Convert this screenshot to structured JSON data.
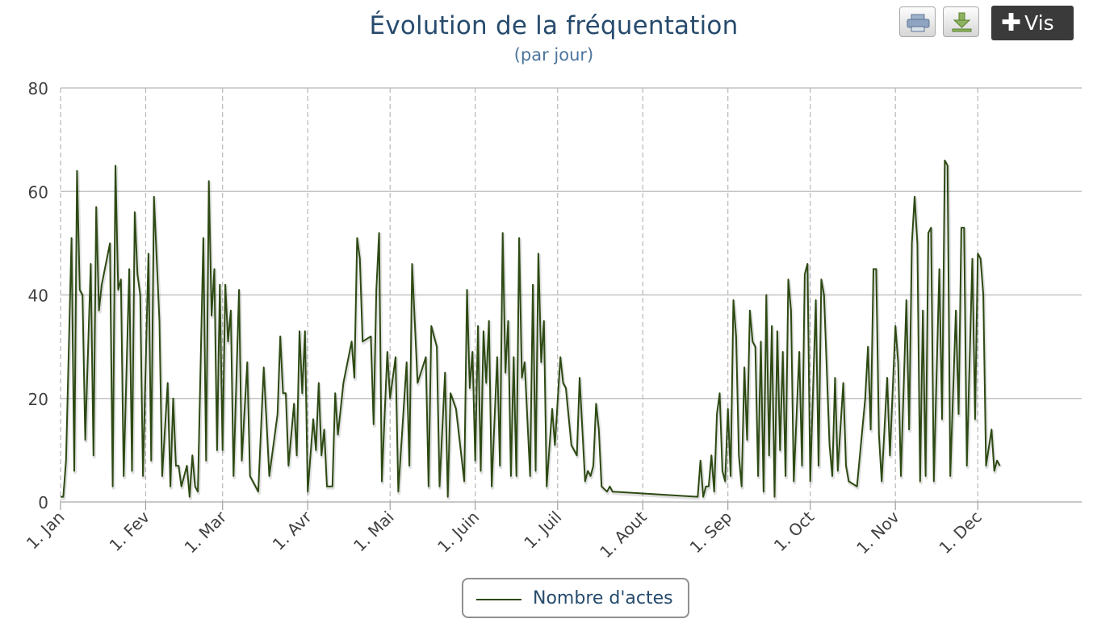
{
  "chart_data": {
    "type": "line",
    "title": "Évolution de la fréquentation",
    "subtitle": "(par jour)",
    "xlabel": "",
    "ylabel": "",
    "ylim": [
      0,
      80
    ],
    "y_ticks": [
      "0",
      "20",
      "40",
      "60",
      "80"
    ],
    "x_tick_labels": [
      "1. Jan",
      "1. Fev",
      "1. Mar",
      "1. Avr",
      "1. Mai",
      "1. Juin",
      "1. Juil",
      "1. Aout",
      "1. Sep",
      "1. Oct",
      "1. Nov",
      "1. Dec"
    ],
    "grid": {
      "y": true,
      "x": "dashed"
    },
    "legend": "bottom-center",
    "series": [
      {
        "name": "Nombre d'actes",
        "color": "#2d4a13",
        "points": [
          [
            1,
            1
          ],
          [
            2,
            1
          ],
          [
            3,
            8
          ],
          [
            5,
            51
          ],
          [
            6,
            6
          ],
          [
            7,
            64
          ],
          [
            8,
            41
          ],
          [
            9,
            40
          ],
          [
            10,
            12
          ],
          [
            12,
            46
          ],
          [
            13,
            9
          ],
          [
            14,
            57
          ],
          [
            15,
            37
          ],
          [
            16,
            42
          ],
          [
            19,
            50
          ],
          [
            20,
            3
          ],
          [
            21,
            65
          ],
          [
            22,
            41
          ],
          [
            23,
            43
          ],
          [
            24,
            5
          ],
          [
            26,
            45
          ],
          [
            27,
            6
          ],
          [
            28,
            56
          ],
          [
            29,
            44
          ],
          [
            30,
            40
          ],
          [
            31,
            5
          ],
          [
            33,
            48
          ],
          [
            34,
            8
          ],
          [
            35,
            59
          ],
          [
            37,
            35
          ],
          [
            38,
            5
          ],
          [
            40,
            23
          ],
          [
            41,
            3
          ],
          [
            42,
            20
          ],
          [
            43,
            7
          ],
          [
            44,
            7
          ],
          [
            45,
            3
          ],
          [
            47,
            7
          ],
          [
            48,
            1
          ],
          [
            49,
            9
          ],
          [
            50,
            3
          ],
          [
            51,
            2
          ],
          [
            53,
            51
          ],
          [
            54,
            8
          ],
          [
            55,
            62
          ],
          [
            56,
            36
          ],
          [
            57,
            45
          ],
          [
            58,
            10
          ],
          [
            59,
            42
          ],
          [
            60,
            10
          ],
          [
            61,
            42
          ],
          [
            62,
            31
          ],
          [
            63,
            37
          ],
          [
            64,
            5
          ],
          [
            66,
            41
          ],
          [
            67,
            8
          ],
          [
            69,
            27
          ],
          [
            70,
            5
          ],
          [
            73,
            2
          ],
          [
            75,
            26
          ],
          [
            77,
            5
          ],
          [
            80,
            17
          ],
          [
            81,
            32
          ],
          [
            82,
            21
          ],
          [
            83,
            21
          ],
          [
            84,
            7
          ],
          [
            86,
            19
          ],
          [
            87,
            9
          ],
          [
            88,
            33
          ],
          [
            89,
            21
          ],
          [
            90,
            33
          ],
          [
            91,
            2
          ],
          [
            93,
            16
          ],
          [
            94,
            10
          ],
          [
            95,
            23
          ],
          [
            96,
            9
          ],
          [
            97,
            14
          ],
          [
            98,
            3
          ],
          [
            100,
            3
          ],
          [
            101,
            21
          ],
          [
            102,
            13
          ],
          [
            104,
            23
          ],
          [
            107,
            31
          ],
          [
            108,
            24
          ],
          [
            109,
            51
          ],
          [
            110,
            47
          ],
          [
            111,
            31
          ],
          [
            114,
            32
          ],
          [
            115,
            15
          ],
          [
            116,
            41
          ],
          [
            117,
            52
          ],
          [
            118,
            4
          ],
          [
            120,
            29
          ],
          [
            121,
            20
          ],
          [
            123,
            28
          ],
          [
            124,
            2
          ],
          [
            127,
            27
          ],
          [
            128,
            7
          ],
          [
            129,
            46
          ],
          [
            131,
            23
          ],
          [
            134,
            28
          ],
          [
            135,
            3
          ],
          [
            136,
            34
          ],
          [
            138,
            30
          ],
          [
            139,
            3
          ],
          [
            141,
            25
          ],
          [
            142,
            1
          ],
          [
            143,
            21
          ],
          [
            145,
            18
          ],
          [
            148,
            4
          ],
          [
            149,
            41
          ],
          [
            150,
            22
          ],
          [
            151,
            29
          ],
          [
            152,
            8
          ],
          [
            153,
            34
          ],
          [
            154,
            6
          ],
          [
            155,
            33
          ],
          [
            156,
            23
          ],
          [
            157,
            35
          ],
          [
            158,
            3
          ],
          [
            160,
            28
          ],
          [
            161,
            7
          ],
          [
            162,
            52
          ],
          [
            163,
            25
          ],
          [
            164,
            35
          ],
          [
            165,
            5
          ],
          [
            166,
            28
          ],
          [
            167,
            5
          ],
          [
            168,
            51
          ],
          [
            169,
            24
          ],
          [
            170,
            27
          ],
          [
            172,
            5
          ],
          [
            173,
            42
          ],
          [
            174,
            6
          ],
          [
            175,
            48
          ],
          [
            176,
            27
          ],
          [
            177,
            35
          ],
          [
            178,
            3
          ],
          [
            180,
            18
          ],
          [
            181,
            11
          ],
          [
            183,
            28
          ],
          [
            184,
            23
          ],
          [
            185,
            22
          ],
          [
            187,
            11
          ],
          [
            189,
            9
          ],
          [
            190,
            24
          ],
          [
            192,
            4
          ],
          [
            193,
            6
          ],
          [
            194,
            5
          ],
          [
            195,
            7
          ],
          [
            196,
            19
          ],
          [
            197,
            14
          ],
          [
            198,
            3
          ],
          [
            200,
            2
          ],
          [
            201,
            3
          ],
          [
            202,
            2
          ],
          [
            233,
            1
          ],
          [
            234,
            8
          ],
          [
            235,
            1
          ],
          [
            236,
            3
          ],
          [
            237,
            3
          ],
          [
            238,
            9
          ],
          [
            239,
            2
          ],
          [
            240,
            17
          ],
          [
            241,
            21
          ],
          [
            242,
            6
          ],
          [
            243,
            4
          ],
          [
            244,
            18
          ],
          [
            245,
            5
          ],
          [
            246,
            39
          ],
          [
            247,
            32
          ],
          [
            248,
            9
          ],
          [
            249,
            3
          ],
          [
            250,
            26
          ],
          [
            251,
            12
          ],
          [
            252,
            37
          ],
          [
            253,
            31
          ],
          [
            254,
            30
          ],
          [
            255,
            5
          ],
          [
            256,
            31
          ],
          [
            257,
            2
          ],
          [
            258,
            40
          ],
          [
            259,
            9
          ],
          [
            260,
            34
          ],
          [
            261,
            1
          ],
          [
            262,
            33
          ],
          [
            263,
            10
          ],
          [
            264,
            29
          ],
          [
            265,
            5
          ],
          [
            266,
            43
          ],
          [
            267,
            37
          ],
          [
            268,
            4
          ],
          [
            270,
            29
          ],
          [
            271,
            7
          ],
          [
            272,
            44
          ],
          [
            273,
            46
          ],
          [
            274,
            4
          ],
          [
            276,
            39
          ],
          [
            277,
            7
          ],
          [
            278,
            43
          ],
          [
            279,
            40
          ],
          [
            281,
            11
          ],
          [
            282,
            5
          ],
          [
            283,
            24
          ],
          [
            284,
            6
          ],
          [
            286,
            23
          ],
          [
            287,
            7
          ],
          [
            288,
            4
          ],
          [
            291,
            3
          ],
          [
            294,
            20
          ],
          [
            295,
            30
          ],
          [
            296,
            14
          ],
          [
            297,
            45
          ],
          [
            298,
            45
          ],
          [
            299,
            13
          ],
          [
            300,
            4
          ],
          [
            302,
            24
          ],
          [
            303,
            9
          ],
          [
            305,
            34
          ],
          [
            306,
            27
          ],
          [
            307,
            5
          ],
          [
            309,
            39
          ],
          [
            310,
            14
          ],
          [
            311,
            50
          ],
          [
            312,
            59
          ],
          [
            313,
            50
          ],
          [
            314,
            4
          ],
          [
            315,
            37
          ],
          [
            316,
            5
          ],
          [
            317,
            52
          ],
          [
            318,
            53
          ],
          [
            319,
            4
          ],
          [
            321,
            45
          ],
          [
            322,
            16
          ],
          [
            323,
            66
          ],
          [
            324,
            65
          ],
          [
            325,
            5
          ],
          [
            327,
            37
          ],
          [
            328,
            17
          ],
          [
            329,
            53
          ],
          [
            330,
            53
          ],
          [
            331,
            7
          ],
          [
            333,
            47
          ],
          [
            334,
            16
          ],
          [
            335,
            48
          ],
          [
            336,
            47
          ],
          [
            337,
            40
          ],
          [
            338,
            7
          ],
          [
            340,
            14
          ],
          [
            341,
            6
          ],
          [
            342,
            8
          ],
          [
            343,
            7
          ]
        ]
      }
    ]
  },
  "toolbar": {
    "print_icon": "print-icon",
    "download_icon": "download-icon",
    "vis_label": "Vis",
    "vis_icon": "plus-icon"
  }
}
